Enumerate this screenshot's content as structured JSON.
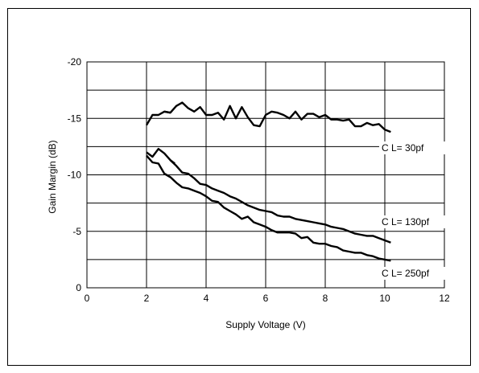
{
  "chart_data": {
    "type": "line",
    "title": "",
    "xlabel": "Supply Voltage (V)",
    "ylabel": "Gain Margin (dB)",
    "xlim": [
      0,
      12
    ],
    "ylim": [
      0,
      -20
    ],
    "x_ticks": [
      "0",
      "2",
      "4",
      "6",
      "8",
      "10",
      "12"
    ],
    "y_ticks": [
      "0",
      "-5",
      "-10",
      "-15",
      "-20"
    ],
    "grid": true,
    "series": [
      {
        "name": "C L= 30pf",
        "label_text": "C L= 30pf",
        "points": [
          [
            2.0,
            -14.4
          ],
          [
            2.2,
            -15.3
          ],
          [
            2.4,
            -15.3
          ],
          [
            2.6,
            -15.6
          ],
          [
            2.8,
            -15.5
          ],
          [
            3.0,
            -16.1
          ],
          [
            3.2,
            -16.4
          ],
          [
            3.4,
            -15.9
          ],
          [
            3.6,
            -15.6
          ],
          [
            3.8,
            -16.0
          ],
          [
            4.0,
            -15.3
          ],
          [
            4.2,
            -15.3
          ],
          [
            4.4,
            -15.5
          ],
          [
            4.6,
            -14.9
          ],
          [
            4.8,
            -16.1
          ],
          [
            5.0,
            -15.0
          ],
          [
            5.2,
            -16.0
          ],
          [
            5.4,
            -15.1
          ],
          [
            5.6,
            -14.4
          ],
          [
            5.8,
            -14.3
          ],
          [
            6.0,
            -15.3
          ],
          [
            6.2,
            -15.6
          ],
          [
            6.4,
            -15.5
          ],
          [
            6.6,
            -15.3
          ],
          [
            6.8,
            -15.0
          ],
          [
            7.0,
            -15.6
          ],
          [
            7.2,
            -14.9
          ],
          [
            7.4,
            -15.4
          ],
          [
            7.6,
            -15.4
          ],
          [
            7.8,
            -15.1
          ],
          [
            8.0,
            -15.3
          ],
          [
            8.2,
            -14.9
          ],
          [
            8.4,
            -14.9
          ],
          [
            8.6,
            -14.8
          ],
          [
            8.8,
            -14.9
          ],
          [
            9.0,
            -14.3
          ],
          [
            9.2,
            -14.3
          ],
          [
            9.4,
            -14.6
          ],
          [
            9.6,
            -14.4
          ],
          [
            9.8,
            -14.5
          ],
          [
            10.0,
            -14.0
          ],
          [
            10.2,
            -13.8
          ]
        ],
        "hook": [
          [
            2.8,
            -15.5
          ],
          [
            2.6,
            -15.6
          ]
        ]
      },
      {
        "name": "C L= 130pf",
        "label_text": "C L= 130pf",
        "points": [
          [
            2.0,
            -12.0
          ],
          [
            2.2,
            -11.6
          ],
          [
            2.4,
            -12.3
          ],
          [
            2.6,
            -11.9
          ],
          [
            2.8,
            -11.3
          ],
          [
            3.0,
            -10.8
          ],
          [
            3.2,
            -10.2
          ],
          [
            3.4,
            -10.1
          ],
          [
            3.6,
            -9.7
          ],
          [
            3.8,
            -9.2
          ],
          [
            4.0,
            -9.1
          ],
          [
            4.2,
            -8.8
          ],
          [
            4.4,
            -8.6
          ],
          [
            4.6,
            -8.4
          ],
          [
            4.8,
            -8.1
          ],
          [
            5.0,
            -7.9
          ],
          [
            5.2,
            -7.6
          ],
          [
            5.4,
            -7.3
          ],
          [
            5.6,
            -7.1
          ],
          [
            5.8,
            -6.9
          ],
          [
            6.0,
            -6.8
          ],
          [
            6.2,
            -6.7
          ],
          [
            6.4,
            -6.4
          ],
          [
            6.6,
            -6.3
          ],
          [
            6.8,
            -6.3
          ],
          [
            7.0,
            -6.1
          ],
          [
            7.2,
            -6.0
          ],
          [
            7.4,
            -5.9
          ],
          [
            7.6,
            -5.8
          ],
          [
            7.8,
            -5.7
          ],
          [
            8.0,
            -5.6
          ],
          [
            8.2,
            -5.4
          ],
          [
            8.4,
            -5.3
          ],
          [
            8.6,
            -5.2
          ],
          [
            8.8,
            -5.0
          ],
          [
            9.0,
            -4.8
          ],
          [
            9.2,
            -4.7
          ],
          [
            9.4,
            -4.6
          ],
          [
            9.6,
            -4.6
          ],
          [
            9.8,
            -4.4
          ],
          [
            10.0,
            -4.2
          ],
          [
            10.2,
            -4.0
          ]
        ],
        "hook": [
          [
            2.8,
            -11.3
          ],
          [
            2.95,
            -11.0
          ]
        ]
      },
      {
        "name": "C L= 250pf",
        "label_text": "C L= 250pf",
        "points": [
          [
            2.0,
            -11.7
          ],
          [
            2.2,
            -11.1
          ],
          [
            2.4,
            -11.0
          ],
          [
            2.6,
            -10.1
          ],
          [
            2.8,
            -9.8
          ],
          [
            3.0,
            -9.3
          ],
          [
            3.2,
            -8.9
          ],
          [
            3.4,
            -8.8
          ],
          [
            3.6,
            -8.6
          ],
          [
            3.8,
            -8.4
          ],
          [
            4.0,
            -8.1
          ],
          [
            4.2,
            -7.7
          ],
          [
            4.4,
            -7.6
          ],
          [
            4.6,
            -7.1
          ],
          [
            4.8,
            -6.8
          ],
          [
            5.0,
            -6.5
          ],
          [
            5.2,
            -6.1
          ],
          [
            5.4,
            -6.3
          ],
          [
            5.6,
            -5.8
          ],
          [
            5.8,
            -5.6
          ],
          [
            6.0,
            -5.4
          ],
          [
            6.2,
            -5.1
          ],
          [
            6.4,
            -4.9
          ],
          [
            6.6,
            -4.9
          ],
          [
            6.8,
            -4.9
          ],
          [
            7.0,
            -4.8
          ],
          [
            7.2,
            -4.4
          ],
          [
            7.4,
            -4.5
          ],
          [
            7.6,
            -4.0
          ],
          [
            7.8,
            -3.9
          ],
          [
            8.0,
            -3.9
          ],
          [
            8.2,
            -3.7
          ],
          [
            8.4,
            -3.6
          ],
          [
            8.6,
            -3.3
          ],
          [
            8.8,
            -3.2
          ],
          [
            9.0,
            -3.1
          ],
          [
            9.2,
            -3.1
          ],
          [
            9.4,
            -2.9
          ],
          [
            9.6,
            -2.8
          ],
          [
            9.8,
            -2.6
          ],
          [
            10.0,
            -2.5
          ],
          [
            10.2,
            -2.4
          ]
        ],
        "hook": [
          [
            2.8,
            -9.8
          ],
          [
            2.6,
            -10.1
          ]
        ]
      }
    ]
  }
}
